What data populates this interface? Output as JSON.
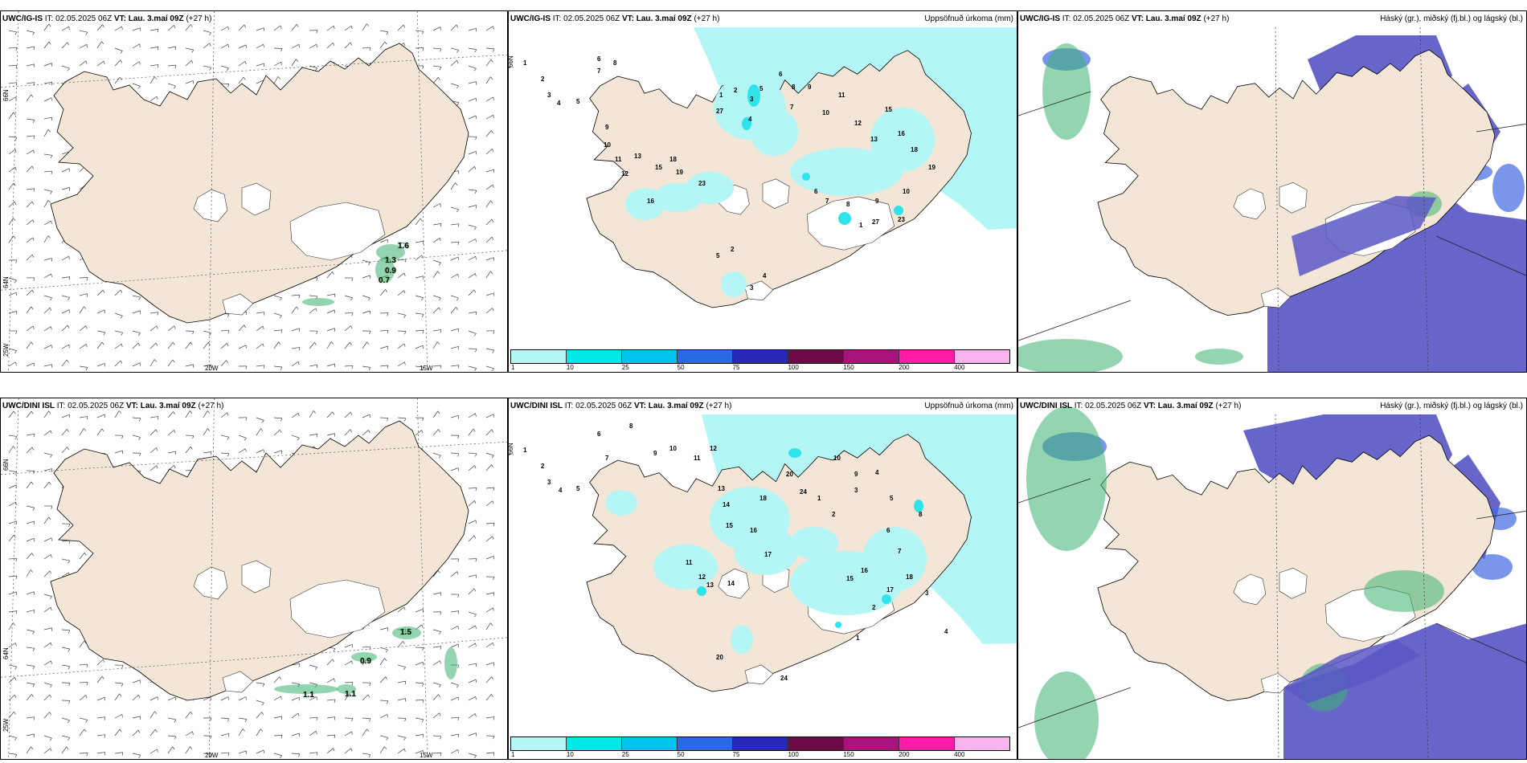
{
  "colors": {
    "land": "#f3e6d6",
    "glacier": "#ffffff",
    "precip_light": "#b4f6f6",
    "precip_mid": "#2fe3ea",
    "cloud_high": "#5a57c6",
    "cloud_mid": "#4169e1",
    "cloud_low": "#3cb371"
  },
  "colorbar": {
    "colors": [
      "#b4f6f6",
      "#00e8e8",
      "#00c3ee",
      "#2a6be5",
      "#2828b8",
      "#6e0a46",
      "#a8137d",
      "#ff1aa8",
      "#f6b3f0"
    ],
    "ticks": [
      "1",
      "10",
      "25",
      "50",
      "75",
      "100",
      "150",
      "200",
      "400"
    ]
  },
  "rows": [
    {
      "model": "UWC/IG-IS",
      "it_label": "IT:",
      "it_value": "02.05.2025 06Z",
      "vt_label": "VT:",
      "vt_value": "Lau. 3.maí 09Z",
      "lead": "(+27 h)",
      "wind_values": [
        "1.6",
        "1.3",
        "0.9",
        "0.7"
      ],
      "precip_values": [
        "1",
        "2",
        "3",
        "4",
        "5",
        "6",
        "7",
        "8",
        "9",
        "10",
        "11",
        "12",
        "13",
        "15",
        "16",
        "18",
        "19",
        "23",
        "27"
      ]
    },
    {
      "model": "UWC/DINI ISL",
      "it_label": "IT:",
      "it_value": "02.05.2025 06Z",
      "vt_label": "VT:",
      "vt_value": "Lau. 3.maí 09Z",
      "lead": "(+27 h)",
      "wind_values": [
        "1.5",
        "0.9",
        "1.1",
        "1.1"
      ],
      "precip_values": [
        "1",
        "2",
        "3",
        "4",
        "5",
        "6",
        "7",
        "8",
        "9",
        "10",
        "11",
        "12",
        "13",
        "14",
        "15",
        "16",
        "17",
        "18",
        "20",
        "24"
      ]
    }
  ],
  "precip_title": "Uppsöfnuð úrkoma (mm)",
  "cloud_title": "Háský (gr.), miðský (fj.bl.) og lágský (bl.)",
  "lon_labels": [
    "20W",
    "15W"
  ],
  "lat_labels": [
    "66N",
    "64N",
    "25W"
  ]
}
